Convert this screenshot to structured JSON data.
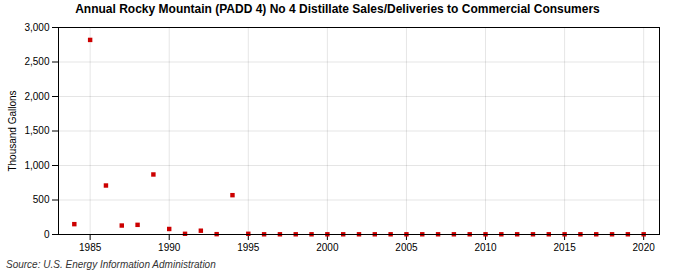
{
  "chart_data": {
    "type": "scatter",
    "title": "Annual Rocky Mountain (PADD 4) No 4 Distillate Sales/Deliveries to Commercial Consumers",
    "ylabel": "Thousand Gallons",
    "source": "Source: U.S. Energy Information Administration",
    "color": "#cc0000",
    "marker": "square",
    "x": [
      1984,
      1985,
      1986,
      1987,
      1988,
      1989,
      1990,
      1991,
      1992,
      1993,
      1994,
      1995,
      1996,
      1997,
      1998,
      1999,
      2000,
      2001,
      2002,
      2003,
      2004,
      2005,
      2006,
      2007,
      2008,
      2009,
      2010,
      2011,
      2012,
      2013,
      2014,
      2015,
      2016,
      2017,
      2018,
      2019,
      2020
    ],
    "values": [
      150,
      2820,
      710,
      130,
      140,
      870,
      80,
      10,
      55,
      5,
      570,
      10,
      3,
      3,
      3,
      3,
      3,
      3,
      3,
      3,
      3,
      3,
      3,
      3,
      3,
      3,
      3,
      3,
      3,
      3,
      3,
      3,
      3,
      3,
      3,
      3,
      3
    ],
    "xlim": [
      1983,
      2021
    ],
    "ylim": [
      0,
      3000
    ],
    "xticks": [
      1985,
      1990,
      1995,
      2000,
      2005,
      2010,
      2015,
      2020
    ],
    "yticks": [
      0,
      500,
      {
        "value": 1000,
        "label": "1,000"
      },
      {
        "value": 1500,
        "label": "1,500"
      },
      {
        "value": 2000,
        "label": "2,000"
      },
      {
        "value": 2500,
        "label": "2,500"
      },
      {
        "value": 3000,
        "label": "3,000"
      }
    ],
    "grid": true
  }
}
